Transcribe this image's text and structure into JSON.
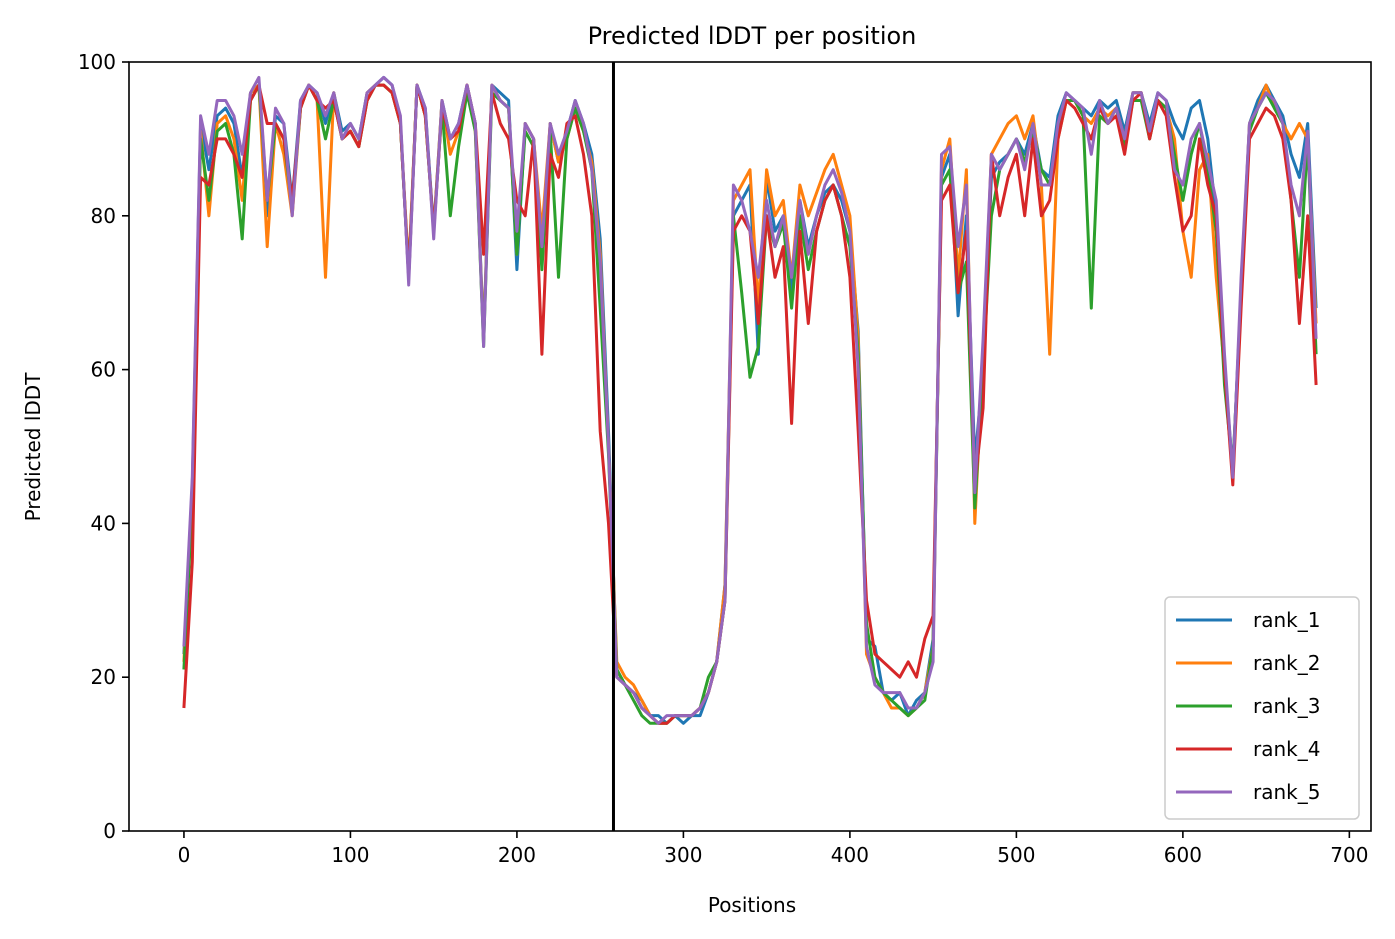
{
  "chart_data": {
    "type": "line",
    "title": "Predicted lDDT per position",
    "xlabel": "Positions",
    "ylabel": "Predicted lDDT",
    "xlim": [
      -33,
      713
    ],
    "ylim": [
      0,
      100
    ],
    "xticks": [
      0,
      100,
      200,
      300,
      400,
      500,
      600,
      700
    ],
    "yticks": [
      0,
      20,
      40,
      60,
      80,
      100
    ],
    "xtick_labels": [
      "0",
      "100",
      "200",
      "300",
      "400",
      "500",
      "600",
      "700"
    ],
    "ytick_labels": [
      "0",
      "20",
      "40",
      "60",
      "80",
      "100"
    ],
    "vline_x": 258,
    "vline_color": "#000000",
    "grid": false,
    "legend_position": "lower-right",
    "x": [
      0,
      5,
      10,
      15,
      20,
      25,
      30,
      35,
      40,
      45,
      50,
      55,
      60,
      65,
      70,
      75,
      80,
      85,
      90,
      95,
      100,
      105,
      110,
      115,
      120,
      125,
      130,
      135,
      140,
      145,
      150,
      155,
      160,
      165,
      170,
      175,
      180,
      185,
      190,
      195,
      200,
      205,
      210,
      215,
      220,
      225,
      230,
      235,
      240,
      245,
      250,
      255,
      260,
      265,
      270,
      275,
      280,
      285,
      290,
      295,
      300,
      305,
      310,
      315,
      320,
      325,
      330,
      335,
      340,
      345,
      350,
      355,
      360,
      365,
      370,
      375,
      380,
      385,
      390,
      395,
      400,
      405,
      410,
      415,
      420,
      425,
      430,
      435,
      440,
      445,
      450,
      455,
      460,
      465,
      470,
      475,
      480,
      485,
      490,
      495,
      500,
      505,
      510,
      515,
      520,
      525,
      530,
      535,
      540,
      545,
      550,
      555,
      560,
      565,
      570,
      575,
      580,
      585,
      590,
      595,
      600,
      605,
      610,
      615,
      620,
      625,
      630,
      635,
      640,
      645,
      650,
      655,
      660,
      665,
      670,
      675,
      680
    ],
    "series": [
      {
        "name": "rank_1",
        "color": "#1f77b4",
        "values": [
          23,
          45,
          92,
          86,
          93,
          94,
          92,
          85,
          96,
          97,
          80,
          93,
          92,
          82,
          95,
          97,
          96,
          92,
          96,
          91,
          92,
          90,
          96,
          97,
          98,
          97,
          92,
          72,
          97,
          94,
          78,
          95,
          90,
          92,
          97,
          92,
          64,
          97,
          96,
          95,
          73,
          92,
          90,
          75,
          92,
          87,
          91,
          95,
          92,
          88,
          77,
          52,
          21,
          19,
          18,
          17,
          15,
          15,
          14,
          15,
          14,
          15,
          15,
          18,
          22,
          32,
          80,
          82,
          84,
          62,
          85,
          78,
          80,
          70,
          82,
          76,
          80,
          83,
          84,
          82,
          78,
          65,
          25,
          24,
          18,
          17,
          18,
          15,
          17,
          18,
          25,
          85,
          88,
          67,
          80,
          48,
          60,
          85,
          87,
          88,
          90,
          88,
          92,
          86,
          85,
          93,
          96,
          95,
          94,
          93,
          95,
          94,
          95,
          91,
          96,
          96,
          92,
          96,
          95,
          92,
          90,
          94,
          95,
          90,
          80,
          60,
          47,
          70,
          92,
          95,
          97,
          95,
          93,
          88,
          85,
          92,
          68
        ]
      },
      {
        "name": "rank_2",
        "color": "#ff7f0e",
        "values": [
          22,
          44,
          91,
          80,
          92,
          93,
          90,
          82,
          96,
          97,
          76,
          92,
          88,
          80,
          94,
          97,
          95,
          72,
          96,
          90,
          91,
          89,
          96,
          97,
          97,
          96,
          92,
          73,
          97,
          93,
          78,
          95,
          88,
          91,
          97,
          91,
          64,
          97,
          95,
          94,
          75,
          92,
          90,
          78,
          92,
          87,
          90,
          94,
          91,
          87,
          75,
          50,
          22,
          20,
          19,
          17,
          15,
          14,
          14,
          15,
          15,
          15,
          16,
          18,
          22,
          32,
          82,
          84,
          86,
          68,
          86,
          80,
          82,
          72,
          84,
          80,
          83,
          86,
          88,
          84,
          80,
          64,
          23,
          20,
          18,
          16,
          16,
          15,
          16,
          18,
          24,
          86,
          90,
          72,
          86,
          40,
          62,
          88,
          90,
          92,
          93,
          90,
          93,
          84,
          62,
          90,
          95,
          95,
          93,
          92,
          94,
          93,
          94,
          90,
          96,
          96,
          91,
          95,
          94,
          90,
          78,
          72,
          86,
          88,
          72,
          60,
          46,
          70,
          92,
          94,
          97,
          94,
          92,
          90,
          92,
          90,
          66
        ]
      },
      {
        "name": "rank_3",
        "color": "#2ca02c",
        "values": [
          21,
          43,
          90,
          82,
          91,
          92,
          88,
          77,
          95,
          97,
          82,
          92,
          90,
          81,
          94,
          97,
          95,
          90,
          95,
          90,
          91,
          89,
          95,
          97,
          97,
          96,
          92,
          72,
          97,
          93,
          78,
          94,
          80,
          89,
          96,
          91,
          63,
          96,
          95,
          94,
          75,
          91,
          89,
          73,
          91,
          72,
          90,
          94,
          91,
          86,
          68,
          49,
          21,
          19,
          17,
          15,
          14,
          14,
          14,
          15,
          15,
          15,
          16,
          20,
          22,
          30,
          80,
          70,
          59,
          63,
          80,
          76,
          79,
          68,
          80,
          73,
          78,
          82,
          84,
          80,
          76,
          62,
          27,
          20,
          18,
          17,
          16,
          15,
          16,
          17,
          24,
          84,
          86,
          70,
          74,
          42,
          60,
          80,
          86,
          88,
          90,
          87,
          91,
          86,
          84,
          91,
          95,
          95,
          93,
          68,
          93,
          92,
          94,
          89,
          95,
          95,
          90,
          95,
          94,
          88,
          82,
          88,
          92,
          86,
          78,
          58,
          47,
          70,
          91,
          94,
          96,
          94,
          92,
          82,
          72,
          90,
          62
        ]
      },
      {
        "name": "rank_4",
        "color": "#d62728",
        "values": [
          16,
          35,
          85,
          84,
          90,
          90,
          88,
          85,
          95,
          97,
          92,
          92,
          90,
          82,
          94,
          97,
          95,
          94,
          95,
          90,
          91,
          89,
          95,
          97,
          97,
          96,
          92,
          72,
          97,
          93,
          78,
          94,
          90,
          91,
          97,
          92,
          75,
          96,
          92,
          90,
          82,
          80,
          90,
          62,
          88,
          85,
          92,
          93,
          88,
          80,
          52,
          40,
          20,
          19,
          18,
          16,
          15,
          14,
          14,
          15,
          15,
          15,
          16,
          18,
          22,
          30,
          78,
          80,
          78,
          66,
          80,
          72,
          76,
          53,
          78,
          66,
          78,
          82,
          84,
          80,
          72,
          52,
          30,
          23,
          22,
          21,
          20,
          22,
          20,
          25,
          28,
          82,
          84,
          70,
          78,
          45,
          55,
          88,
          80,
          85,
          88,
          80,
          90,
          80,
          82,
          90,
          95,
          94,
          92,
          90,
          94,
          92,
          93,
          88,
          95,
          96,
          90,
          95,
          93,
          85,
          78,
          80,
          90,
          84,
          80,
          60,
          45,
          68,
          90,
          92,
          94,
          93,
          90,
          82,
          66,
          80,
          58
        ]
      },
      {
        "name": "rank_5",
        "color": "#9467bd",
        "values": [
          24,
          46,
          93,
          88,
          95,
          95,
          93,
          88,
          96,
          98,
          82,
          94,
          92,
          80,
          95,
          97,
          96,
          93,
          96,
          90,
          92,
          90,
          96,
          97,
          98,
          97,
          93,
          71,
          97,
          94,
          77,
          95,
          90,
          92,
          97,
          92,
          63,
          97,
          95,
          94,
          78,
          92,
          90,
          76,
          92,
          88,
          91,
          95,
          92,
          86,
          74,
          50,
          20,
          19,
          18,
          16,
          15,
          14,
          15,
          15,
          15,
          15,
          16,
          18,
          22,
          30,
          84,
          82,
          78,
          72,
          82,
          76,
          80,
          72,
          82,
          75,
          80,
          84,
          86,
          83,
          78,
          60,
          24,
          19,
          18,
          18,
          18,
          16,
          16,
          18,
          22,
          88,
          89,
          76,
          84,
          44,
          64,
          88,
          86,
          88,
          90,
          86,
          92,
          84,
          84,
          92,
          96,
          95,
          94,
          88,
          95,
          92,
          94,
          90,
          96,
          96,
          91,
          96,
          95,
          86,
          84,
          90,
          92,
          87,
          82,
          62,
          46,
          72,
          92,
          94,
          96,
          95,
          92,
          84,
          80,
          91,
          64
        ]
      }
    ]
  }
}
